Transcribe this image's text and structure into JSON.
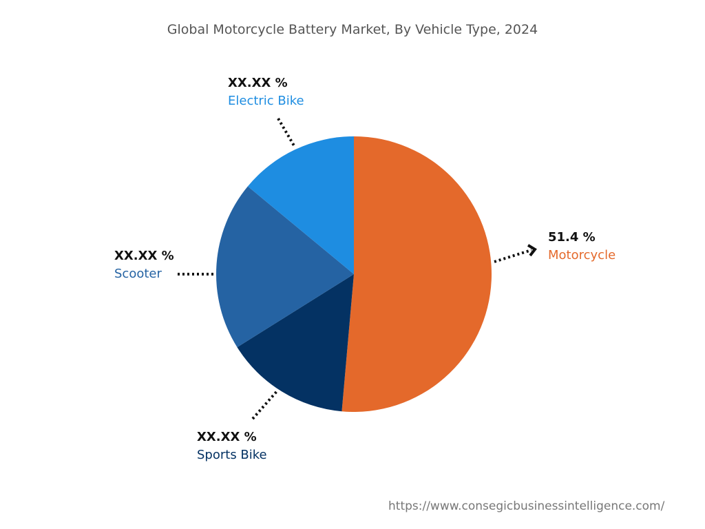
{
  "chart_data": {
    "type": "pie",
    "title": "Global Motorcycle Battery Market, By Vehicle Type, 2024",
    "slices": [
      {
        "name": "Motorcycle",
        "value": 51.4,
        "label": "51.4 %",
        "color": "#E4692B"
      },
      {
        "name": "Sports Bike",
        "value": 14.7,
        "label": "XX.XX %",
        "color": "#043263"
      },
      {
        "name": "Scooter",
        "value": 19.9,
        "label": "XX.XX %",
        "color": "#2563A3"
      },
      {
        "name": "Electric Bike",
        "value": 14.0,
        "label": "XX.XX %",
        "color": "#1E8DE1"
      }
    ],
    "start_angle": "top, clockwise"
  },
  "footer": {
    "url": "https://www.consegicbusinessintelligence.com/"
  }
}
